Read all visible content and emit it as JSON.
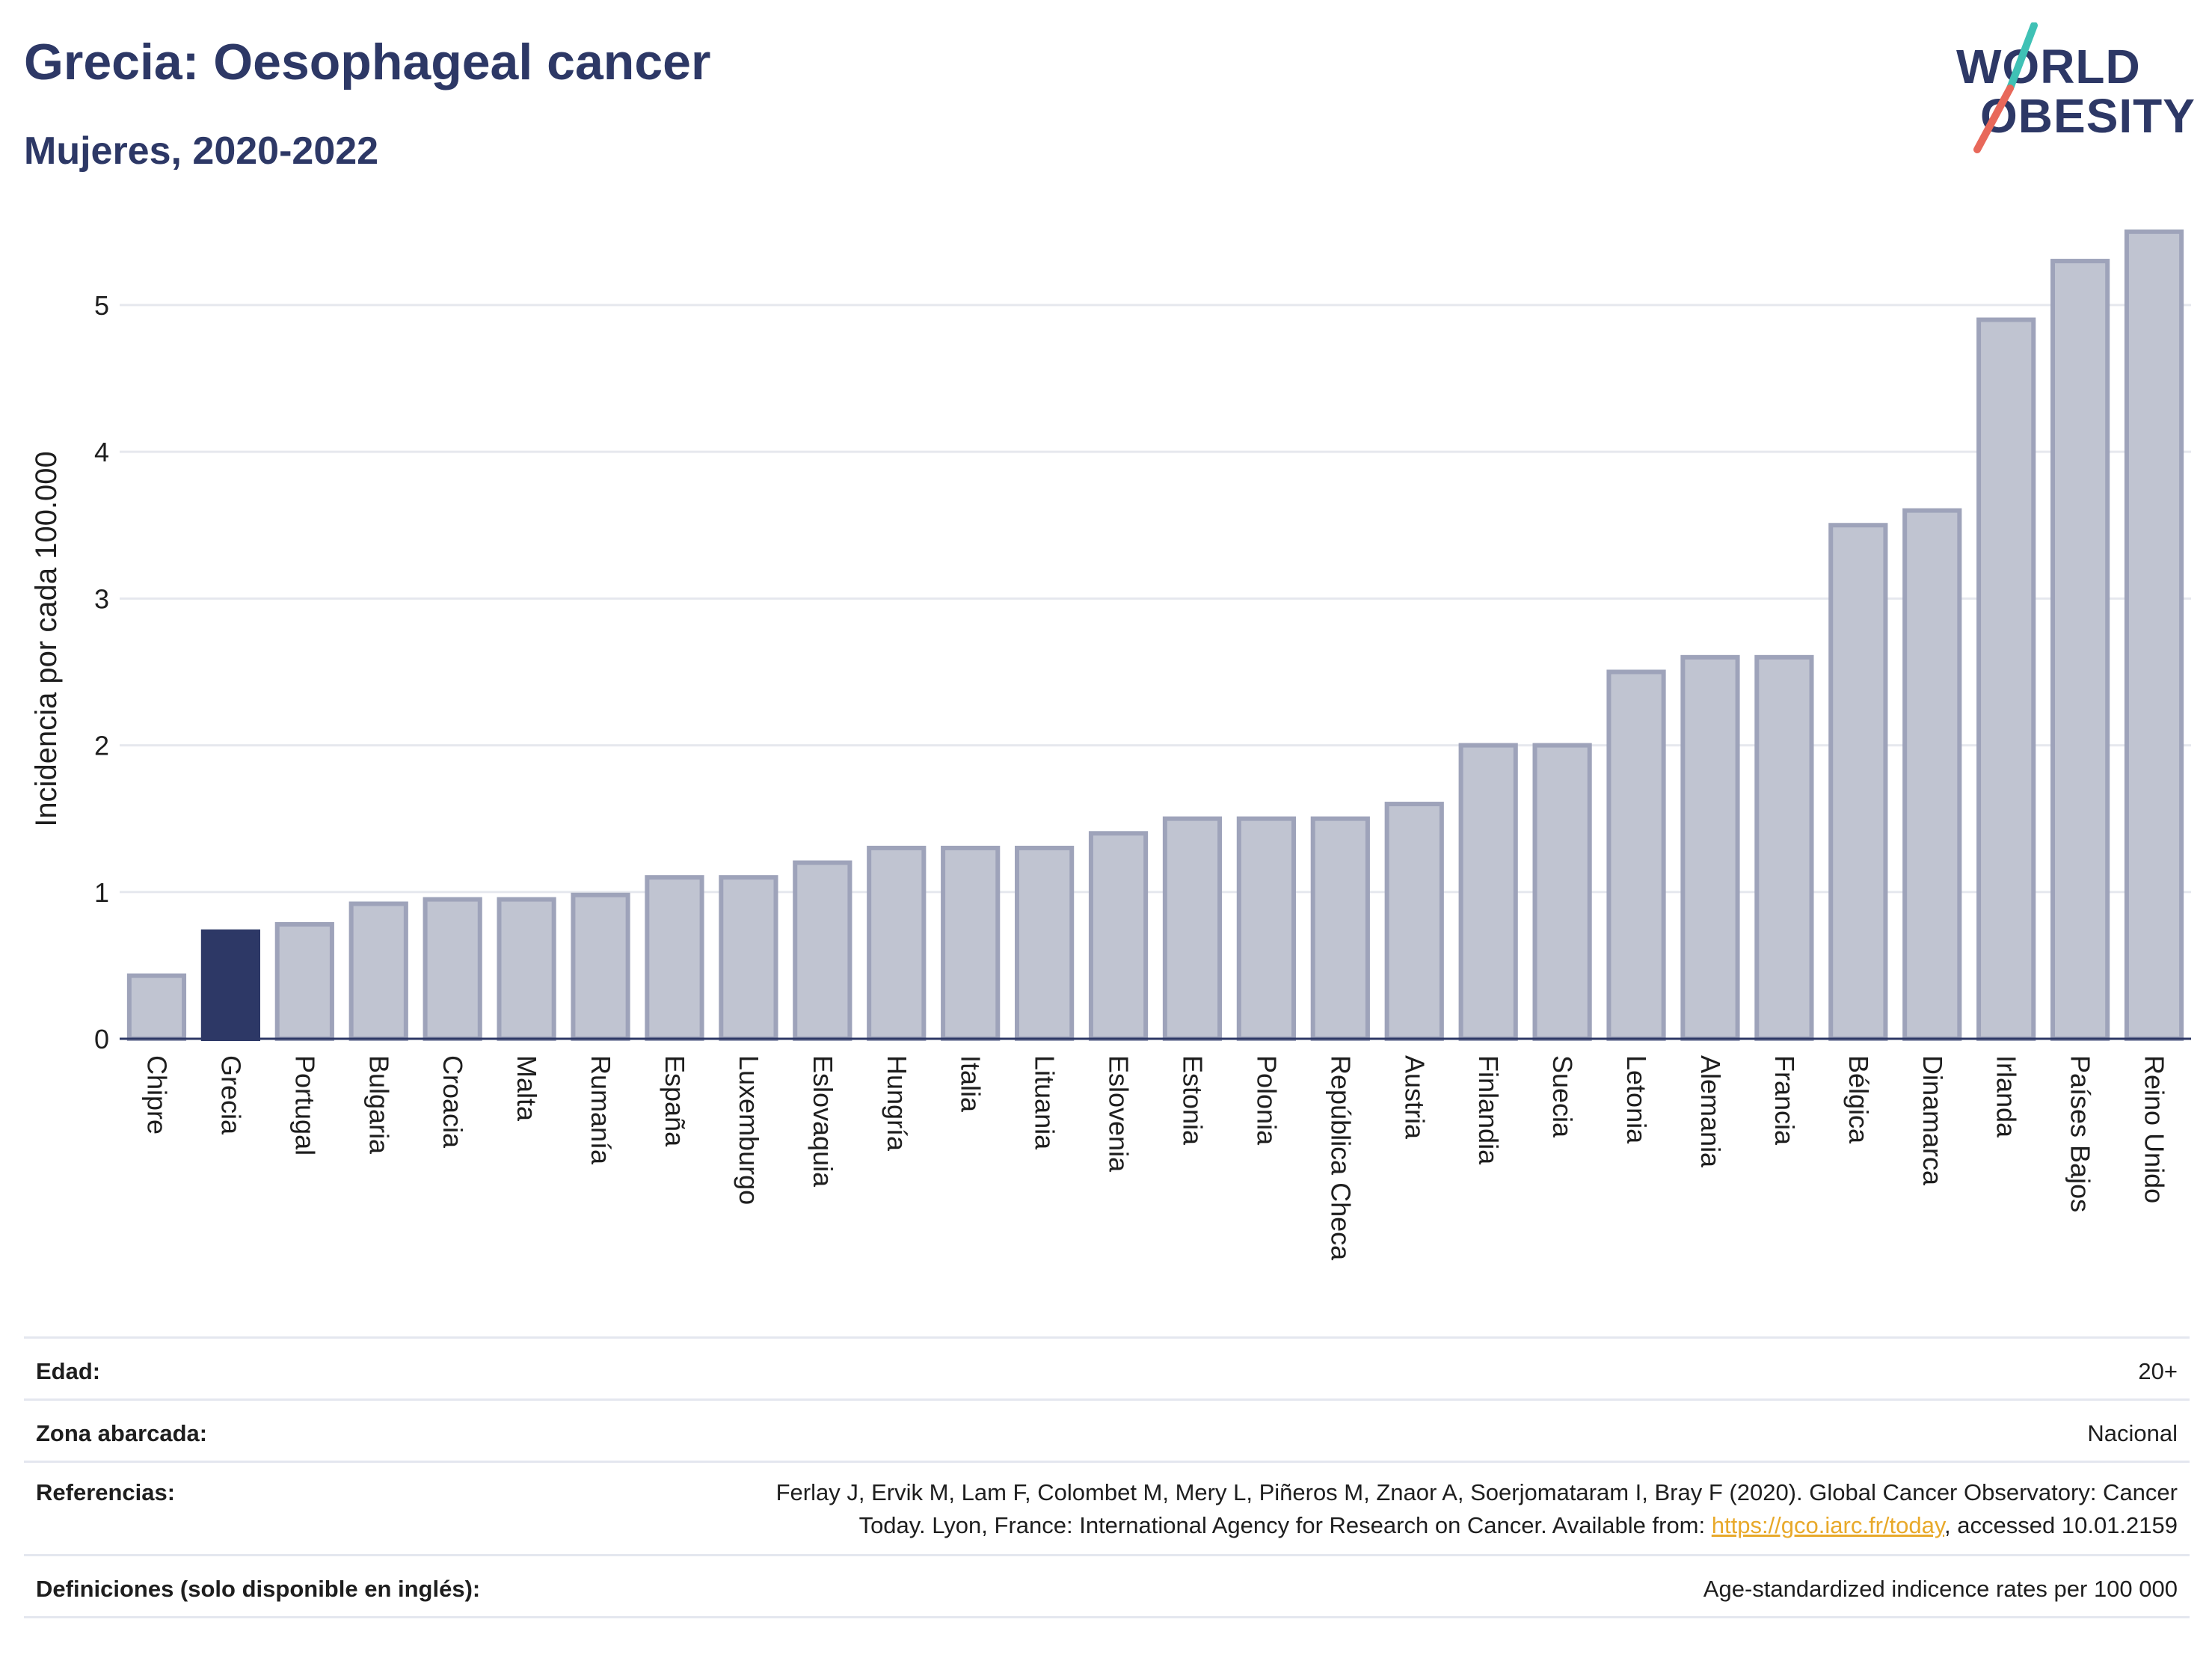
{
  "header": {
    "title": "Grecia: Oesophageal cancer",
    "subtitle": "Mujeres, 2020-2022"
  },
  "logo": {
    "line1": "WORLD",
    "line2": "OBESITY",
    "icon": "world-obesity-slash-logo"
  },
  "colors": {
    "highlight": "#2d3866",
    "bar_fill": "#c0c4d1",
    "bar_stroke": "#9ea3ba",
    "grid": "#e6e8ee",
    "accent_teal": "#3fc1b5",
    "accent_red": "#e8685a"
  },
  "chart_data": {
    "type": "bar",
    "ylabel": "Incidencia por cada 100.000",
    "ylim": [
      0,
      5.55
    ],
    "yticks": [
      0,
      1,
      2,
      3,
      4,
      5
    ],
    "grid": true,
    "highlight": "Grecia",
    "categories": [
      "Chipre",
      "Grecia",
      "Portugal",
      "Bulgaria",
      "Croacia",
      "Malta",
      "Rumanía",
      "España",
      "Luxemburgo",
      "Eslovaquia",
      "Hungría",
      "Italia",
      "Lituania",
      "Eslovenia",
      "Estonia",
      "Polonia",
      "República Checa",
      "Austria",
      "Finlandia",
      "Suecia",
      "Letonia",
      "Alemania",
      "Francia",
      "Bélgica",
      "Dinamarca",
      "Irlanda",
      "Países Bajos",
      "Reino Unido"
    ],
    "values": [
      0.43,
      0.73,
      0.78,
      0.92,
      0.95,
      0.95,
      0.98,
      1.1,
      1.1,
      1.2,
      1.3,
      1.3,
      1.3,
      1.4,
      1.5,
      1.5,
      1.5,
      1.6,
      2.0,
      2.0,
      2.5,
      2.6,
      2.6,
      3.5,
      3.6,
      4.9,
      5.3,
      5.5
    ]
  },
  "info": {
    "age_label": "Edad:",
    "age_value": "20+",
    "area_label": "Zona abarcada:",
    "area_value": "Nacional",
    "ref_label": "Referencias:",
    "ref_line1": "Ferlay J, Ervik M, Lam F, Colombet M, Mery L, Piñeros M, Znaor A, Soerjomataram I, Bray F (2020). Global Cancer Observatory: Cancer",
    "ref_line2_pre": "Today. Lyon, France: International Agency for Research on Cancer. Available from: ",
    "ref_link": "https://gco.iarc.fr/today",
    "ref_line2_post": ", accessed 10.01.2159",
    "def_label": "Definiciones (solo disponible en inglés):",
    "def_value": "Age-standardized indicence rates per 100 000"
  }
}
